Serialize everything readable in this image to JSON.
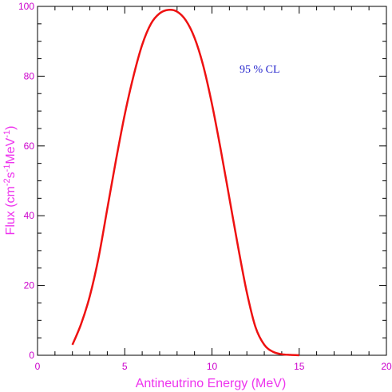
{
  "chart_data": {
    "type": "line",
    "xlabel": "Antineutrino Energy (MeV)",
    "ylabel_parts": [
      {
        "text": "Flux (cm",
        "sup": false
      },
      {
        "text": "-2",
        "sup": true
      },
      {
        "text": "s",
        "sup": false
      },
      {
        "text": "-1",
        "sup": true
      },
      {
        "text": "MeV",
        "sup": false
      },
      {
        "text": "-1",
        "sup": true
      },
      {
        "text": ")",
        "sup": false
      }
    ],
    "annotation": "95 % CL",
    "xlim": [
      0,
      20
    ],
    "ylim": [
      0,
      100
    ],
    "xticks": [
      0,
      5,
      10,
      15,
      20
    ],
    "yticks": [
      0,
      20,
      40,
      60,
      80,
      100
    ],
    "x_minor_step": 1,
    "y_minor_step": 5,
    "grid": false,
    "line_color": "#ee1111",
    "axis_label_color": "#ee33ee",
    "tick_label_color": "#cc00cc",
    "annotation_color": "#2222cc",
    "series": [
      {
        "x": [
          2.0,
          2.5,
          3.0,
          3.5,
          4.0,
          4.5,
          5.0,
          5.5,
          6.0,
          6.5,
          7.0,
          7.5,
          8.0,
          8.5,
          9.0,
          9.5,
          10.0,
          10.5,
          11.0,
          11.5,
          12.0,
          12.5,
          13.0,
          13.5,
          14.0,
          14.5,
          15.0
        ],
        "y": [
          3,
          9,
          17,
          28,
          42,
          56,
          69,
          80,
          89,
          95,
          98,
          99,
          98.5,
          96,
          91,
          83,
          72,
          59,
          45,
          31,
          18,
          8,
          3,
          1,
          0.3,
          0.1,
          0
        ]
      }
    ]
  }
}
